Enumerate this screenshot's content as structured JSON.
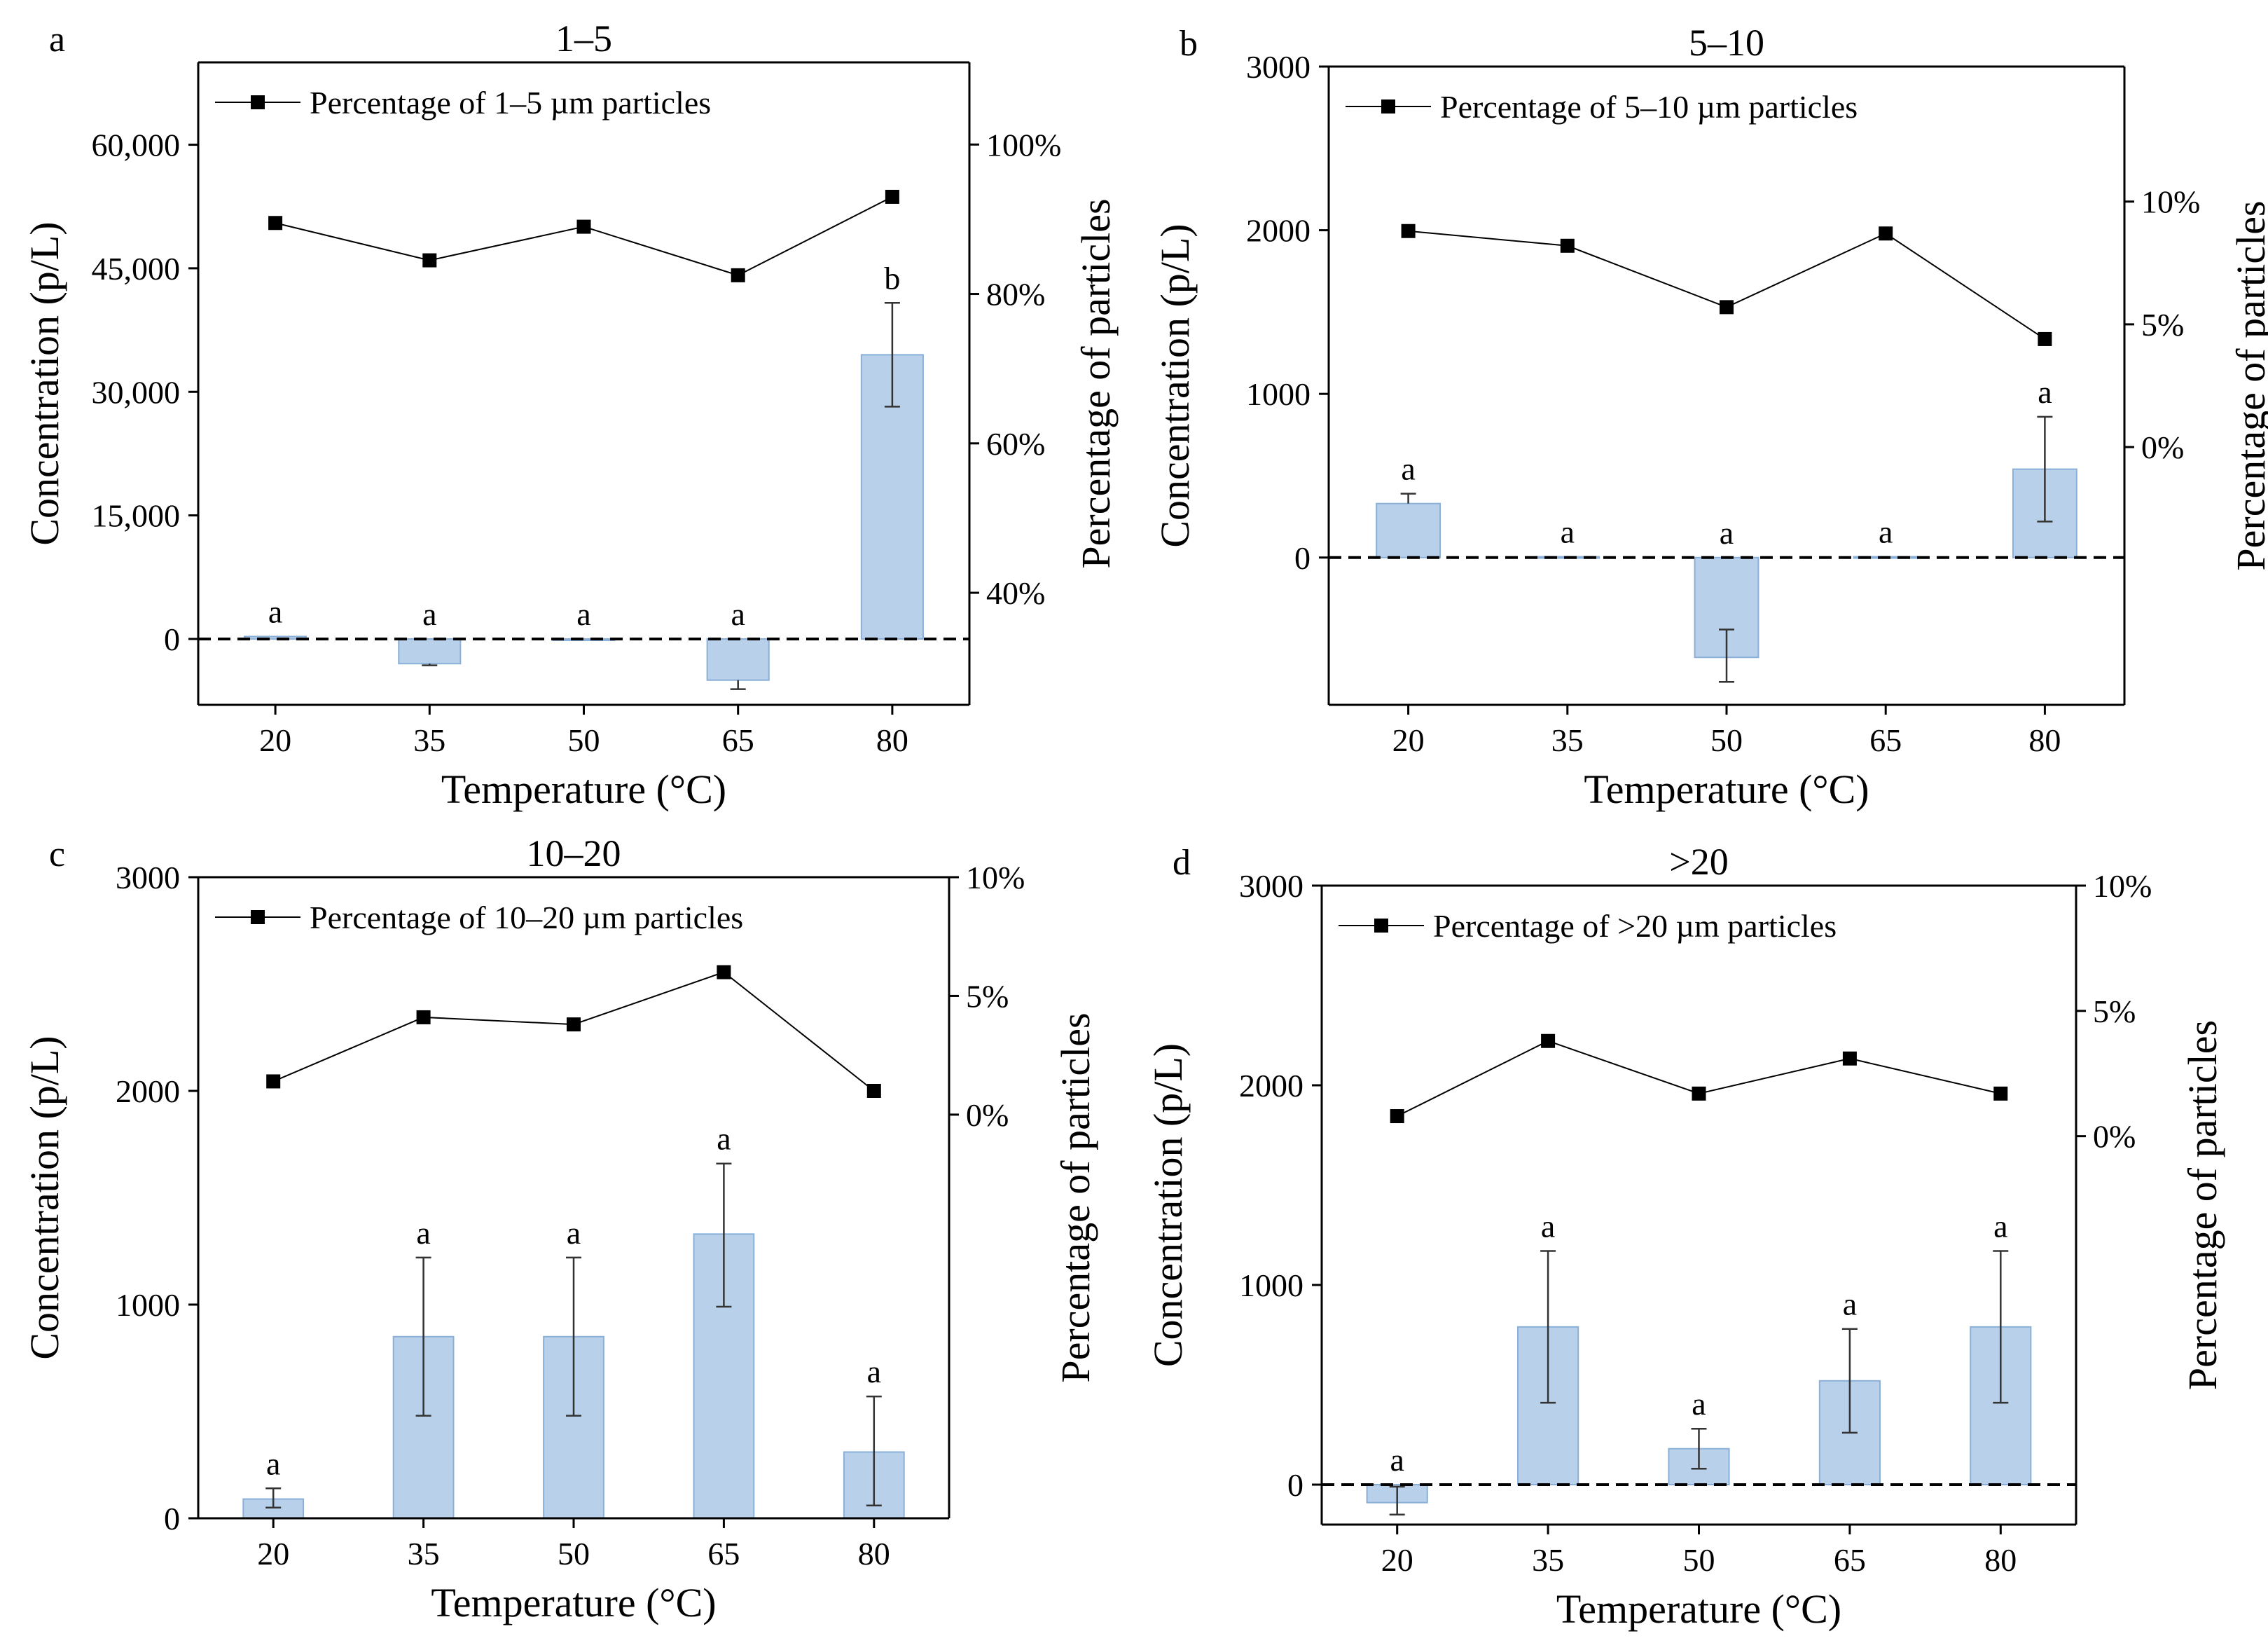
{
  "chart_data": [
    {
      "panel_letter": "a",
      "title": "1–5",
      "type": "bar",
      "xlabel": "Temperature (°C)",
      "ylabel": "Concentration (p/L)",
      "y2label": "Percentage of particles",
      "categories": [
        "20",
        "35",
        "50",
        "65",
        "80"
      ],
      "ylim": [
        -8000,
        70000
      ],
      "yticks": [
        "0",
        "15,000",
        "30,000",
        "45,000",
        "60,000"
      ],
      "ytick_values": [
        0,
        15000,
        30000,
        45000,
        60000
      ],
      "y2lim": [
        25,
        111
      ],
      "y2ticks": [
        "40%",
        "60%",
        "80%",
        "100%"
      ],
      "y2tick_values": [
        40,
        60,
        80,
        100
      ],
      "series": [
        {
          "kind": "bar",
          "values": [
            300,
            -3000,
            0,
            -5000,
            34500
          ],
          "err_low": [
            0,
            200,
            0,
            1100,
            6300
          ],
          "err_high": [
            0,
            0,
            0,
            0,
            6300
          ],
          "letters": [
            "a",
            "a",
            "a",
            "a",
            "b"
          ]
        },
        {
          "kind": "line",
          "name": "Percentage of 1–5 µm particles",
          "values": [
            89.5,
            84.5,
            89,
            82.5,
            93
          ]
        }
      ],
      "legend_position": "top-left",
      "zero_line": "dashed"
    },
    {
      "panel_letter": "b",
      "title": "5–10",
      "type": "bar",
      "xlabel": "Temperature (°C)",
      "ylabel": "Concentration (p/L)",
      "y2label": "Percentage of particles",
      "categories": [
        "20",
        "35",
        "50",
        "65",
        "80"
      ],
      "ylim": [
        -900,
        3000
      ],
      "yticks": [
        "0",
        "1000",
        "2000",
        "3000"
      ],
      "ytick_values": [
        0,
        1000,
        2000,
        3000
      ],
      "y2lim": [
        -10.5,
        15.5
      ],
      "y2ticks": [
        "0%",
        "5%",
        "10%"
      ],
      "y2tick_values": [
        0,
        5,
        10
      ],
      "series": [
        {
          "kind": "bar",
          "values": [
            330,
            5,
            -610,
            5,
            540
          ],
          "err_low": [
            0,
            0,
            150,
            0,
            320
          ],
          "err_high": [
            60,
            0,
            170,
            0,
            320
          ],
          "letters": [
            "a",
            "a",
            "a",
            "a",
            "a"
          ]
        },
        {
          "kind": "line",
          "name": "Percentage of  5–10 µm particles",
          "values": [
            8.8,
            8.2,
            5.7,
            8.7,
            4.4
          ]
        }
      ],
      "legend_position": "top-left",
      "zero_line": "dashed"
    },
    {
      "panel_letter": "c",
      "title": "10–20",
      "type": "bar",
      "xlabel": "Temperature (°C)",
      "ylabel": "Concentration (p/L)",
      "y2label": "Percentage of particles",
      "categories": [
        "20",
        "35",
        "50",
        "65",
        "80"
      ],
      "ylim": [
        0,
        3000
      ],
      "yticks": [
        "0",
        "1000",
        "2000",
        "3000"
      ],
      "ytick_values": [
        0,
        1000,
        2000,
        3000
      ],
      "y2lim": [
        -17,
        10
      ],
      "y2ticks": [
        "0%",
        "5%",
        "10%"
      ],
      "y2tick_values": [
        0,
        5,
        10
      ],
      "series": [
        {
          "kind": "bar",
          "values": [
            90,
            850,
            850,
            1330,
            310
          ],
          "err_low": [
            40,
            370,
            370,
            340,
            250
          ],
          "err_high": [
            50,
            370,
            370,
            330,
            260
          ],
          "letters": [
            "a",
            "a",
            "a",
            "a",
            "a"
          ]
        },
        {
          "kind": "line",
          "name": "Percentage of  10–20 µm particles",
          "values": [
            1.4,
            4.1,
            3.8,
            6.0,
            1.0
          ]
        }
      ],
      "legend_position": "top-left",
      "zero_line": "none"
    },
    {
      "panel_letter": "d",
      "title": ">20",
      "type": "bar",
      "xlabel": "Temperature (°C)",
      "ylabel": "Concentration (p/L)",
      "y2label": "Percentage of particles",
      "categories": [
        "20",
        "35",
        "50",
        "65",
        "80"
      ],
      "ylim": [
        -200,
        3000
      ],
      "yticks": [
        "0",
        "1000",
        "2000",
        "3000"
      ],
      "ytick_values": [
        0,
        1000,
        2000,
        3000
      ],
      "y2lim": [
        -15.5,
        10
      ],
      "y2ticks": [
        "0%",
        "5%",
        "10%"
      ],
      "y2tick_values": [
        0,
        5,
        10
      ],
      "series": [
        {
          "kind": "bar",
          "values": [
            -90,
            790,
            180,
            520,
            790
          ],
          "err_low": [
            60,
            380,
            100,
            260,
            380
          ],
          "err_high": [
            80,
            380,
            100,
            260,
            380
          ],
          "letters": [
            "a",
            "a",
            "a",
            "a",
            "a"
          ]
        },
        {
          "kind": "line",
          "name": "Percentage of >20 µm particles",
          "values": [
            0.8,
            3.8,
            1.7,
            3.1,
            1.7
          ]
        }
      ],
      "legend_position": "top-left",
      "zero_line": "dashed"
    }
  ],
  "colors": {
    "bar_fill": "#b8d0ea",
    "bar_stroke": "#8ab0d8",
    "line": "#000000",
    "axis": "#000000"
  }
}
